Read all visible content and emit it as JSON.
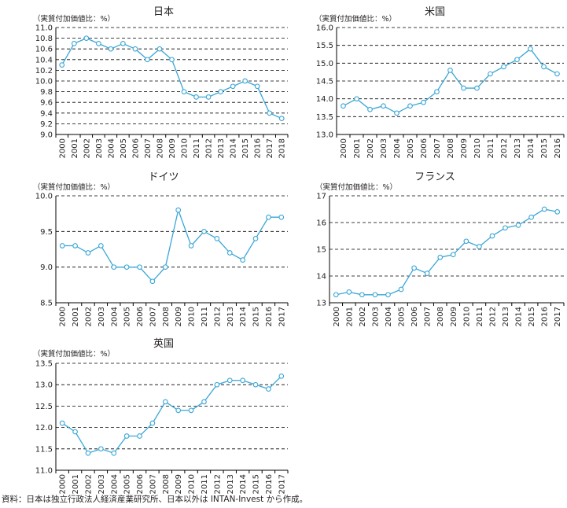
{
  "source_note": "資料：日本は独立行政法人経済産業研究所、日本以外は INTAN-Invest から作成。",
  "style": {
    "line_color": "#3aa6d6",
    "marker_fill": "#ffffff",
    "text_color": "#231f20",
    "gridline_color": "#000000"
  },
  "chart_data": [
    {
      "type": "line",
      "title": "日本",
      "ylabel": "（実質付加価値比：%）",
      "ylim": [
        9.0,
        11.0
      ],
      "yticks": [
        "9.0",
        "9.2",
        "9.4",
        "9.6",
        "9.8",
        "10.0",
        "10.2",
        "10.4",
        "10.6",
        "10.8",
        "11.0"
      ],
      "x": [
        "2000",
        "2001",
        "2002",
        "2003",
        "2004",
        "2005",
        "2006",
        "2007",
        "2008",
        "2009",
        "2010",
        "2011",
        "2012",
        "2013",
        "2014",
        "2015",
        "2016",
        "2017",
        "2018"
      ],
      "values": [
        10.3,
        10.7,
        10.8,
        10.7,
        10.6,
        10.7,
        10.6,
        10.4,
        10.6,
        10.4,
        9.8,
        9.7,
        9.7,
        9.8,
        9.9,
        10.0,
        9.9,
        9.4,
        9.3
      ],
      "grid": "dashed horizontal"
    },
    {
      "type": "line",
      "title": "米国",
      "ylabel": "（実質付加価値比：%）",
      "ylim": [
        13.0,
        16.0
      ],
      "yticks": [
        "13.0",
        "13.5",
        "14.0",
        "14.5",
        "15.0",
        "15.5",
        "16.0"
      ],
      "x": [
        "2000",
        "2001",
        "2002",
        "2003",
        "2004",
        "2005",
        "2006",
        "2007",
        "2008",
        "2009",
        "2010",
        "2011",
        "2012",
        "2013",
        "2014",
        "2015",
        "2016"
      ],
      "values": [
        13.8,
        14.0,
        13.7,
        13.8,
        13.6,
        13.8,
        13.9,
        14.2,
        14.8,
        14.3,
        14.3,
        14.7,
        14.9,
        15.1,
        15.4,
        14.9,
        14.7
      ],
      "grid": "dashed horizontal"
    },
    {
      "type": "line",
      "title": "ドイツ",
      "ylabel": "（実質付加価値比：%）",
      "ylim": [
        8.5,
        10.0
      ],
      "yticks": [
        "8.5",
        "9.0",
        "9.5",
        "10.0"
      ],
      "x": [
        "2000",
        "2001",
        "2002",
        "2003",
        "2004",
        "2005",
        "2006",
        "2007",
        "2008",
        "2009",
        "2010",
        "2011",
        "2012",
        "2013",
        "2014",
        "2015",
        "2016",
        "2017"
      ],
      "values": [
        9.3,
        9.3,
        9.2,
        9.3,
        9.0,
        9.0,
        9.0,
        8.8,
        9.0,
        9.8,
        9.3,
        9.5,
        9.4,
        9.2,
        9.1,
        9.4,
        9.7,
        9.7
      ],
      "grid": "dashed horizontal"
    },
    {
      "type": "line",
      "title": "フランス",
      "ylabel": "（実質付加価値比：%）",
      "ylim": [
        13,
        17
      ],
      "yticks": [
        "13",
        "14",
        "15",
        "16",
        "17"
      ],
      "x": [
        "2000",
        "2001",
        "2002",
        "2003",
        "2004",
        "2005",
        "2006",
        "2007",
        "2008",
        "2009",
        "2010",
        "2011",
        "2012",
        "2013",
        "2014",
        "2015",
        "2016",
        "2017"
      ],
      "values": [
        13.3,
        13.4,
        13.3,
        13.3,
        13.3,
        13.5,
        14.3,
        14.1,
        14.7,
        14.8,
        15.3,
        15.1,
        15.5,
        15.8,
        15.9,
        16.2,
        16.5,
        16.4
      ],
      "grid": "dashed horizontal"
    },
    {
      "type": "line",
      "title": "英国",
      "ylabel": "（実質付加価値比：%）",
      "ylim": [
        11.0,
        13.5
      ],
      "yticks": [
        "11.0",
        "11.5",
        "12.0",
        "12.5",
        "13.0",
        "13.5"
      ],
      "x": [
        "2000",
        "2001",
        "2002",
        "2003",
        "2004",
        "2005",
        "2006",
        "2007",
        "2008",
        "2009",
        "2010",
        "2011",
        "2012",
        "2013",
        "2014",
        "2015",
        "2016",
        "2017"
      ],
      "values": [
        12.1,
        11.9,
        11.4,
        11.5,
        11.4,
        11.8,
        11.8,
        12.1,
        12.6,
        12.4,
        12.4,
        12.6,
        13.0,
        13.1,
        13.1,
        13.0,
        12.9,
        13.2
      ],
      "grid": "dashed horizontal"
    }
  ]
}
